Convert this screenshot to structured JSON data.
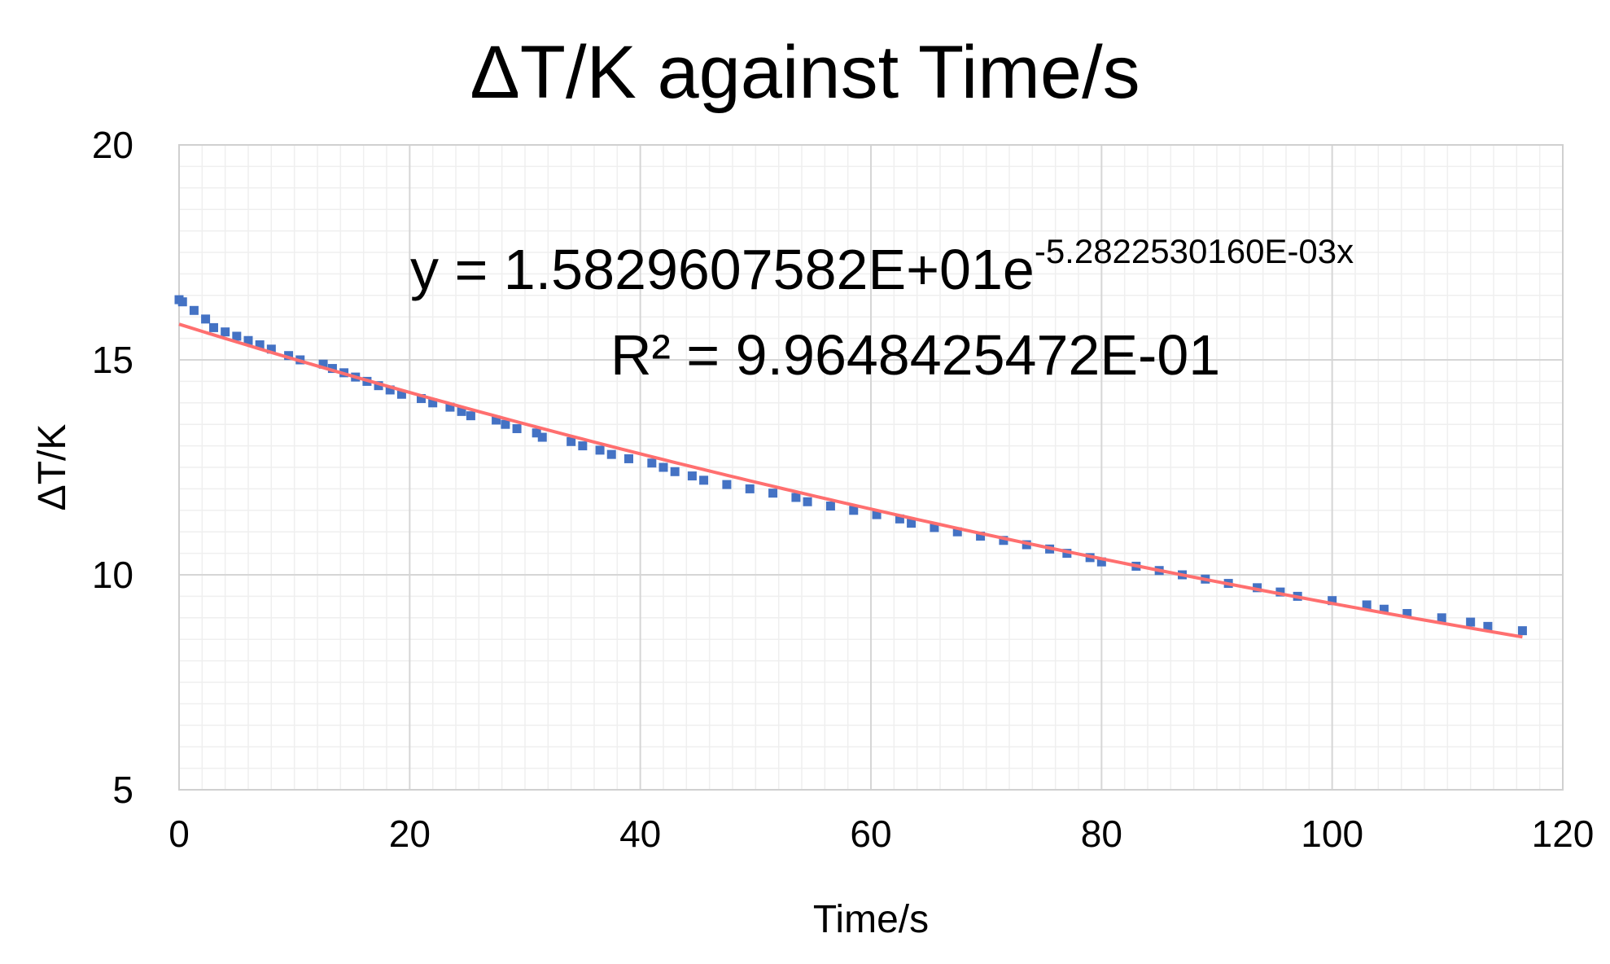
{
  "chart_data": {
    "type": "scatter",
    "title": "ΔT/K against Time/s",
    "xlabel": "Time/s",
    "ylabel": "ΔT/K",
    "xlim": [
      0,
      120
    ],
    "ylim": [
      5,
      20
    ],
    "x_ticks": [
      "0",
      "20",
      "40",
      "60",
      "80",
      "100",
      "120"
    ],
    "y_ticks": [
      "5",
      "10",
      "15",
      "20"
    ],
    "x_tick_values": [
      0,
      20,
      40,
      60,
      80,
      100,
      120
    ],
    "y_tick_values": [
      5,
      10,
      15,
      20
    ],
    "grid": "major and minor",
    "legend": "none",
    "series": [
      {
        "marker": "square",
        "color": "#4472C4",
        "points": [
          [
            0.0,
            16.4
          ],
          [
            0.3,
            16.35
          ],
          [
            1.3,
            16.15
          ],
          [
            2.3,
            15.95
          ],
          [
            3.0,
            15.75
          ],
          [
            4.0,
            15.65
          ],
          [
            5.0,
            15.55
          ],
          [
            6.0,
            15.45
          ],
          [
            7.0,
            15.35
          ],
          [
            8.0,
            15.25
          ],
          [
            9.5,
            15.1
          ],
          [
            10.5,
            15.0
          ],
          [
            12.5,
            14.9
          ],
          [
            13.3,
            14.8
          ],
          [
            14.3,
            14.7
          ],
          [
            15.3,
            14.6
          ],
          [
            16.3,
            14.5
          ],
          [
            17.3,
            14.4
          ],
          [
            18.3,
            14.3
          ],
          [
            19.3,
            14.2
          ],
          [
            21.0,
            14.1
          ],
          [
            22.0,
            14.0
          ],
          [
            23.5,
            13.9
          ],
          [
            24.5,
            13.8
          ],
          [
            25.3,
            13.7
          ],
          [
            27.5,
            13.6
          ],
          [
            28.3,
            13.5
          ],
          [
            29.3,
            13.4
          ],
          [
            31.0,
            13.3
          ],
          [
            31.5,
            13.2
          ],
          [
            34.0,
            13.1
          ],
          [
            35.0,
            13.0
          ],
          [
            36.5,
            12.9
          ],
          [
            37.5,
            12.8
          ],
          [
            39.0,
            12.7
          ],
          [
            41.0,
            12.6
          ],
          [
            42.0,
            12.5
          ],
          [
            43.0,
            12.4
          ],
          [
            44.5,
            12.3
          ],
          [
            45.5,
            12.2
          ],
          [
            47.5,
            12.1
          ],
          [
            49.5,
            12.0
          ],
          [
            51.5,
            11.9
          ],
          [
            53.5,
            11.8
          ],
          [
            54.5,
            11.7
          ],
          [
            56.5,
            11.6
          ],
          [
            58.5,
            11.5
          ],
          [
            60.5,
            11.4
          ],
          [
            62.5,
            11.3
          ],
          [
            63.5,
            11.2
          ],
          [
            65.5,
            11.1
          ],
          [
            67.5,
            11.0
          ],
          [
            69.5,
            10.9
          ],
          [
            71.5,
            10.8
          ],
          [
            73.5,
            10.7
          ],
          [
            75.5,
            10.6
          ],
          [
            77.0,
            10.5
          ],
          [
            79.0,
            10.4
          ],
          [
            80.0,
            10.3
          ],
          [
            83.0,
            10.2
          ],
          [
            85.0,
            10.1
          ],
          [
            87.0,
            10.0
          ],
          [
            89.0,
            9.9
          ],
          [
            91.0,
            9.8
          ],
          [
            93.5,
            9.7
          ],
          [
            95.5,
            9.6
          ],
          [
            97.0,
            9.5
          ],
          [
            100.0,
            9.4
          ],
          [
            103.0,
            9.3
          ],
          [
            104.5,
            9.2
          ],
          [
            106.5,
            9.1
          ],
          [
            109.5,
            9.0
          ],
          [
            112.0,
            8.9
          ],
          [
            113.5,
            8.8
          ],
          [
            116.5,
            8.7
          ]
        ]
      }
    ],
    "trendline": {
      "type": "exponential",
      "a": 15.829607582,
      "b": -0.005282253016,
      "x_range": [
        0,
        116.5
      ],
      "color": "#FF6F6F"
    },
    "annotation": {
      "equation_main": "y = 1.5829607582E+01e",
      "equation_exponent": "-5.2822530160E-03x",
      "r_squared": "R² = 9.9648425472E-01"
    }
  }
}
